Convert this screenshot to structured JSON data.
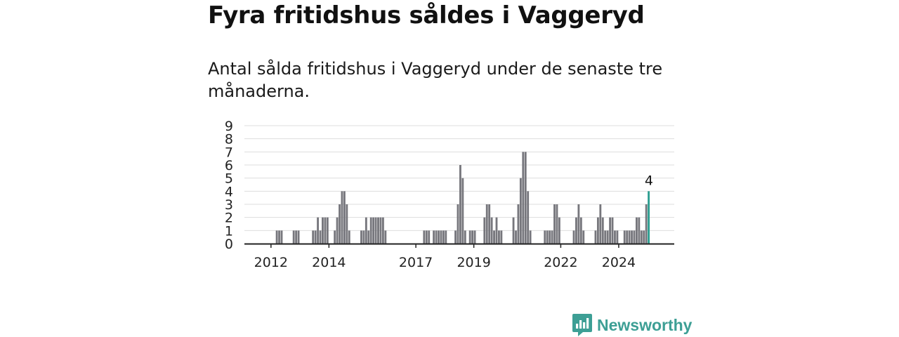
{
  "title": "Fyra fritidshus såldes i Vaggeryd",
  "subtitle": "Antal sålda fritidshus i Vaggeryd under de senaste tre månaderna.",
  "brand": {
    "name": "Newsworthy",
    "icon": "newsworthy-logo-icon"
  },
  "colors": {
    "bar": "#76767c",
    "highlight": "#2a9d8f",
    "grid": "#dddddd",
    "axis": "#222222"
  },
  "chart_data": {
    "type": "bar",
    "x_unit": "month",
    "xlim": [
      "2011-02",
      "2025-12"
    ],
    "ylim": [
      0,
      9
    ],
    "yticks": [
      "0",
      "1",
      "2",
      "3",
      "4",
      "5",
      "6",
      "7",
      "8",
      "9"
    ],
    "xticks": [
      {
        "label": "2012",
        "date": "2012-01"
      },
      {
        "label": "2014",
        "date": "2014-01"
      },
      {
        "label": "2017",
        "date": "2017-01"
      },
      {
        "label": "2019",
        "date": "2019-01"
      },
      {
        "label": "2022",
        "date": "2022-01"
      },
      {
        "label": "2024",
        "date": "2024-01"
      }
    ],
    "grid": true,
    "series": [
      {
        "values": [
          {
            "date": "2012-03",
            "value": 1
          },
          {
            "date": "2012-04",
            "value": 1
          },
          {
            "date": "2012-05",
            "value": 1
          },
          {
            "date": "2012-10",
            "value": 1
          },
          {
            "date": "2012-11",
            "value": 1
          },
          {
            "date": "2012-12",
            "value": 1
          },
          {
            "date": "2013-06",
            "value": 1
          },
          {
            "date": "2013-07",
            "value": 1
          },
          {
            "date": "2013-08",
            "value": 2
          },
          {
            "date": "2013-09",
            "value": 1
          },
          {
            "date": "2013-10",
            "value": 2
          },
          {
            "date": "2013-11",
            "value": 2
          },
          {
            "date": "2013-12",
            "value": 2
          },
          {
            "date": "2014-03",
            "value": 1
          },
          {
            "date": "2014-04",
            "value": 2
          },
          {
            "date": "2014-05",
            "value": 3
          },
          {
            "date": "2014-06",
            "value": 4
          },
          {
            "date": "2014-07",
            "value": 4
          },
          {
            "date": "2014-08",
            "value": 3
          },
          {
            "date": "2014-09",
            "value": 1
          },
          {
            "date": "2015-02",
            "value": 1
          },
          {
            "date": "2015-03",
            "value": 1
          },
          {
            "date": "2015-04",
            "value": 2
          },
          {
            "date": "2015-05",
            "value": 1
          },
          {
            "date": "2015-06",
            "value": 2
          },
          {
            "date": "2015-07",
            "value": 2
          },
          {
            "date": "2015-08",
            "value": 2
          },
          {
            "date": "2015-09",
            "value": 2
          },
          {
            "date": "2015-10",
            "value": 2
          },
          {
            "date": "2015-11",
            "value": 2
          },
          {
            "date": "2015-12",
            "value": 1
          },
          {
            "date": "2017-04",
            "value": 1
          },
          {
            "date": "2017-05",
            "value": 1
          },
          {
            "date": "2017-06",
            "value": 1
          },
          {
            "date": "2017-08",
            "value": 1
          },
          {
            "date": "2017-09",
            "value": 1
          },
          {
            "date": "2017-10",
            "value": 1
          },
          {
            "date": "2017-11",
            "value": 1
          },
          {
            "date": "2017-12",
            "value": 1
          },
          {
            "date": "2018-01",
            "value": 1
          },
          {
            "date": "2018-05",
            "value": 1
          },
          {
            "date": "2018-06",
            "value": 3
          },
          {
            "date": "2018-07",
            "value": 6
          },
          {
            "date": "2018-08",
            "value": 5
          },
          {
            "date": "2018-09",
            "value": 1
          },
          {
            "date": "2018-11",
            "value": 1
          },
          {
            "date": "2018-12",
            "value": 1
          },
          {
            "date": "2019-01",
            "value": 1
          },
          {
            "date": "2019-05",
            "value": 2
          },
          {
            "date": "2019-06",
            "value": 3
          },
          {
            "date": "2019-07",
            "value": 3
          },
          {
            "date": "2019-08",
            "value": 2
          },
          {
            "date": "2019-09",
            "value": 1
          },
          {
            "date": "2019-10",
            "value": 2
          },
          {
            "date": "2019-11",
            "value": 1
          },
          {
            "date": "2019-12",
            "value": 1
          },
          {
            "date": "2020-05",
            "value": 2
          },
          {
            "date": "2020-06",
            "value": 1
          },
          {
            "date": "2020-07",
            "value": 3
          },
          {
            "date": "2020-08",
            "value": 5
          },
          {
            "date": "2020-09",
            "value": 7
          },
          {
            "date": "2020-10",
            "value": 7
          },
          {
            "date": "2020-11",
            "value": 4
          },
          {
            "date": "2020-12",
            "value": 1
          },
          {
            "date": "2021-06",
            "value": 1
          },
          {
            "date": "2021-07",
            "value": 1
          },
          {
            "date": "2021-08",
            "value": 1
          },
          {
            "date": "2021-09",
            "value": 1
          },
          {
            "date": "2021-10",
            "value": 3
          },
          {
            "date": "2021-11",
            "value": 3
          },
          {
            "date": "2021-12",
            "value": 2
          },
          {
            "date": "2022-06",
            "value": 1
          },
          {
            "date": "2022-07",
            "value": 2
          },
          {
            "date": "2022-08",
            "value": 3
          },
          {
            "date": "2022-09",
            "value": 2
          },
          {
            "date": "2022-10",
            "value": 1
          },
          {
            "date": "2023-03",
            "value": 1
          },
          {
            "date": "2023-04",
            "value": 2
          },
          {
            "date": "2023-05",
            "value": 3
          },
          {
            "date": "2023-06",
            "value": 2
          },
          {
            "date": "2023-07",
            "value": 1
          },
          {
            "date": "2023-08",
            "value": 1
          },
          {
            "date": "2023-09",
            "value": 2
          },
          {
            "date": "2023-10",
            "value": 2
          },
          {
            "date": "2023-11",
            "value": 1
          },
          {
            "date": "2023-12",
            "value": 1
          },
          {
            "date": "2024-03",
            "value": 1
          },
          {
            "date": "2024-04",
            "value": 1
          },
          {
            "date": "2024-05",
            "value": 1
          },
          {
            "date": "2024-06",
            "value": 1
          },
          {
            "date": "2024-07",
            "value": 1
          },
          {
            "date": "2024-08",
            "value": 2
          },
          {
            "date": "2024-09",
            "value": 2
          },
          {
            "date": "2024-10",
            "value": 1
          },
          {
            "date": "2024-11",
            "value": 1
          },
          {
            "date": "2024-12",
            "value": 3
          },
          {
            "date": "2025-01",
            "value": 4
          }
        ]
      }
    ],
    "highlight": {
      "date": "2025-01",
      "value": 4,
      "label": "4"
    }
  }
}
